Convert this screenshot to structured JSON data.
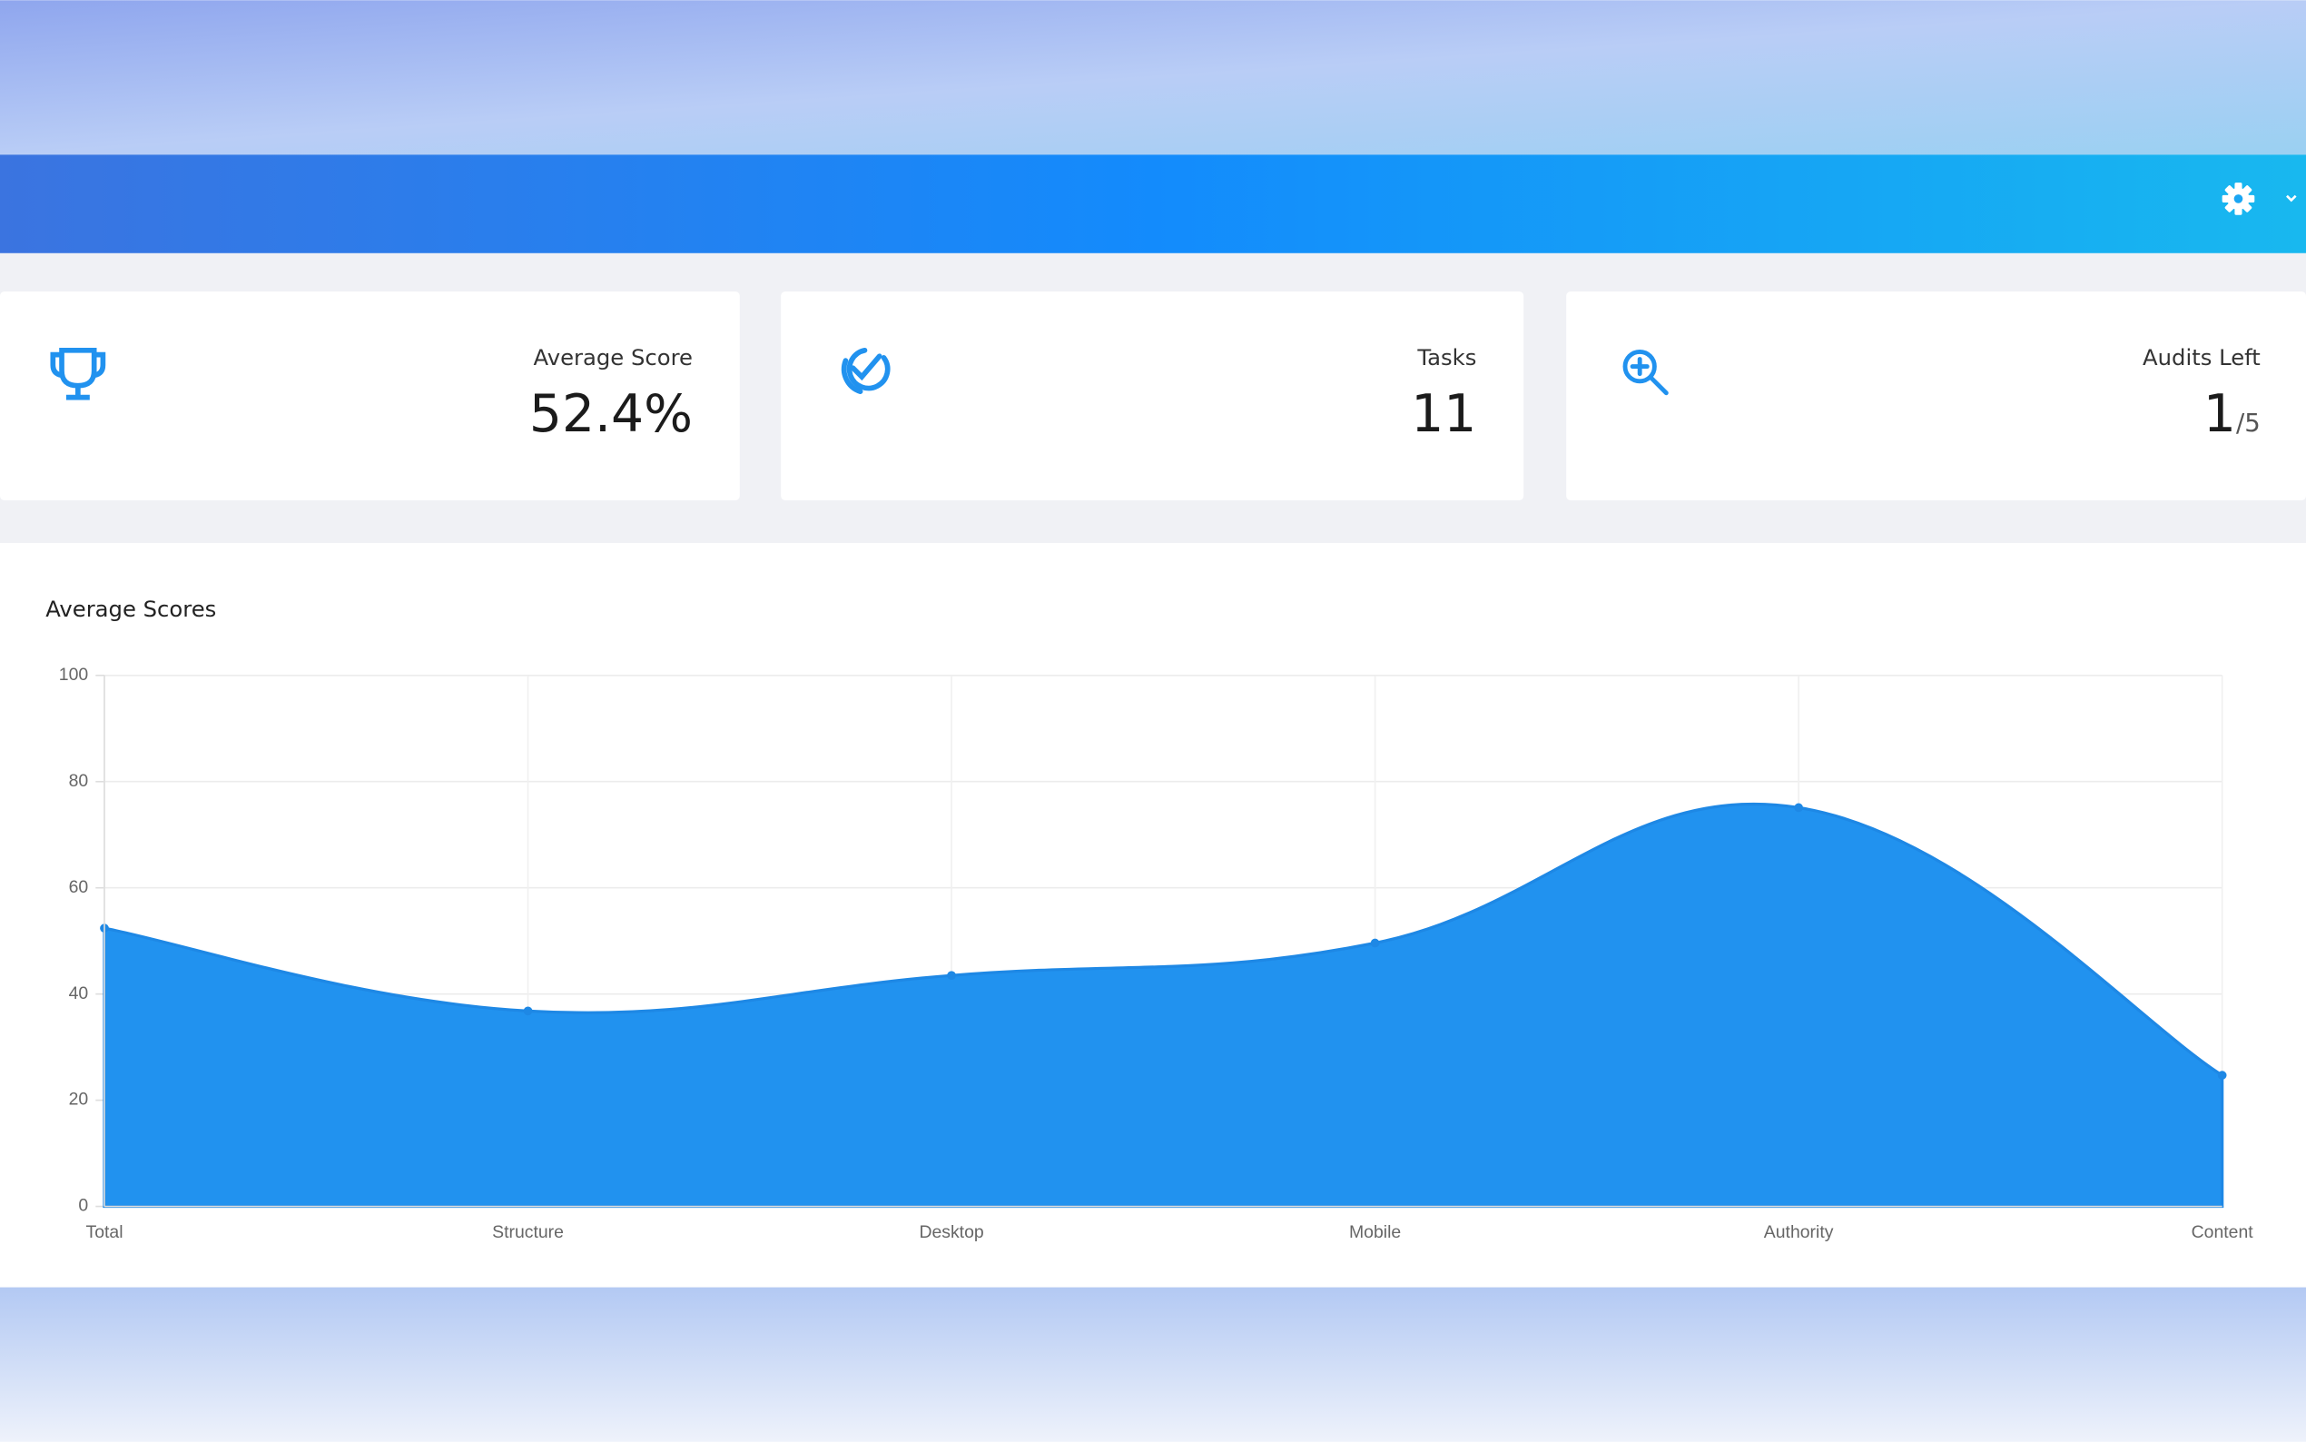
{
  "cards": [
    {
      "label": "Average Score",
      "value": "52.4%"
    },
    {
      "label": "Tasks",
      "value": "11"
    },
    {
      "label": "Audits Left",
      "value": "1",
      "suffix": "/5"
    }
  ],
  "chart_data": {
    "type": "area",
    "title": "Average Scores",
    "categories": [
      "Total",
      "Structure",
      "Desktop",
      "Mobile",
      "Authority",
      "Content"
    ],
    "values": [
      52.4,
      36.8,
      43.5,
      49.6,
      75.1,
      24.7
    ],
    "color": "#2192ef",
    "ylim": [
      0,
      100
    ],
    "yticks": [
      0,
      20,
      40,
      60,
      80,
      100
    ],
    "grid": true
  }
}
